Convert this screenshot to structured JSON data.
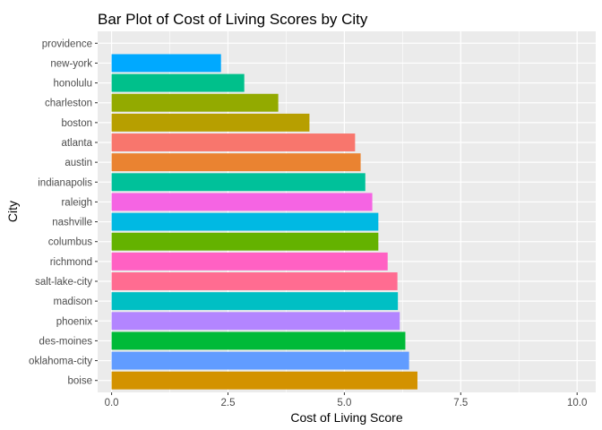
{
  "chart_data": {
    "type": "bar",
    "orientation": "horizontal",
    "title": "Bar Plot of Cost of Living Scores by City",
    "xlabel": "Cost of Living Score",
    "ylabel": "City",
    "xlim": [
      -0.3,
      10.4
    ],
    "x_ticks": [
      "0.0",
      "2.5",
      "5.0",
      "7.5",
      "10.0"
    ],
    "x_tick_values": [
      0,
      2.5,
      5.0,
      7.5,
      10.0
    ],
    "grid": true,
    "legend": "none",
    "categories": [
      "boise",
      "oklahoma-city",
      "des-moines",
      "phoenix",
      "madison",
      "salt-lake-city",
      "richmond",
      "columbus",
      "nashville",
      "raleigh",
      "indianapolis",
      "austin",
      "atlanta",
      "boston",
      "charleston",
      "honolulu",
      "new-york",
      "providence"
    ],
    "values": [
      6.57,
      6.39,
      6.31,
      6.19,
      6.15,
      6.14,
      5.93,
      5.73,
      5.73,
      5.6,
      5.45,
      5.35,
      5.23,
      4.25,
      3.58,
      2.85,
      2.35,
      0
    ],
    "colors": [
      "#D39200",
      "#619CFF",
      "#00BA38",
      "#B385FF",
      "#00BFC4",
      "#FF6C91",
      "#FF61C3",
      "#64B200",
      "#00B9E3",
      "#F564E3",
      "#00C19A",
      "#EA8331",
      "#F8766D",
      "#B79F00",
      "#93AA00",
      "#00C08B",
      "#00A9FF",
      "#DB72FB"
    ]
  }
}
